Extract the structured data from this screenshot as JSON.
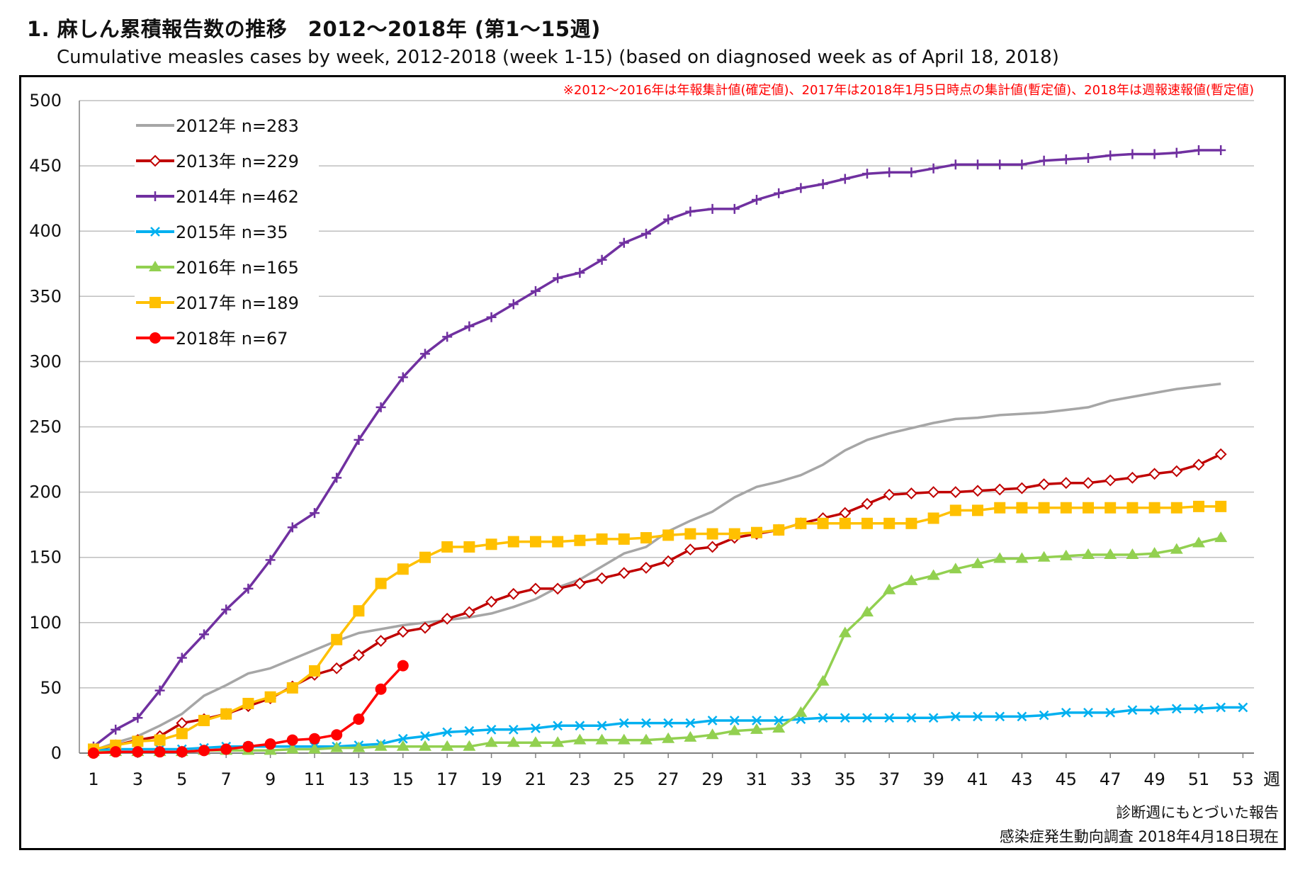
{
  "header": {
    "title": "1. 麻しん累積報告数の推移　2012～2018年 (第1～15週)",
    "subtitle": "Cumulative measles cases by week, 2012-2018 (week 1-15)  (based on diagnosed week as of April 18, 2018)"
  },
  "chart_data": {
    "type": "line",
    "title": "1. 麻しん累積報告数の推移　2012～2018年 (第1～15週)",
    "subtitle": "Cumulative measles cases by week, 2012-2018 (week 1-15)  (based on diagnosed week as of April 18, 2018)",
    "note_top": "※2012～2016年は年報集計値(確定値)、2017年は2018年1月5日時点の集計値(暫定値)、2018年は週報速報値(暫定値)",
    "note_bottom_1": "診断週にもとづいた報告",
    "note_bottom_2": "感染症発生動向調査 2018年4月18日現在",
    "xlabel": "週",
    "ylim": [
      0,
      500
    ],
    "yticks": [
      0,
      50,
      100,
      150,
      200,
      250,
      300,
      350,
      400,
      450,
      500
    ],
    "xlim": [
      1,
      53
    ],
    "xticks": [
      "1",
      "3",
      "5",
      "7",
      "9",
      "11",
      "13",
      "15",
      "17",
      "19",
      "21",
      "23",
      "25",
      "27",
      "29",
      "31",
      "33",
      "35",
      "37",
      "39",
      "41",
      "43",
      "45",
      "47",
      "49",
      "51",
      "53"
    ],
    "grid": true,
    "legend_position": "top-left",
    "series": [
      {
        "name": "2012年 n=283",
        "color": "#a6a6a6",
        "marker": "none",
        "values": [
          2,
          8,
          13,
          21,
          30,
          44,
          52,
          61,
          65,
          72,
          79,
          86,
          92,
          95,
          98,
          100,
          102,
          104,
          107,
          112,
          118,
          127,
          133,
          143,
          153,
          158,
          170,
          178,
          185,
          196,
          204,
          208,
          213,
          221,
          232,
          240,
          245,
          249,
          253,
          256,
          257,
          259,
          260,
          261,
          263,
          265,
          270,
          273,
          276,
          279,
          281,
          283
        ]
      },
      {
        "name": "2013年 n=229",
        "color": "#c00000",
        "marker": "diamond",
        "values": [
          2,
          6,
          10,
          13,
          23,
          26,
          30,
          36,
          42,
          51,
          60,
          65,
          75,
          86,
          93,
          96,
          103,
          108,
          116,
          122,
          126,
          126,
          130,
          134,
          138,
          142,
          147,
          156,
          158,
          165,
          168,
          171,
          176,
          180,
          184,
          191,
          198,
          199,
          200,
          200,
          201,
          202,
          203,
          206,
          207,
          207,
          209,
          211,
          214,
          216,
          221,
          229
        ]
      },
      {
        "name": "2014年 n=462",
        "color": "#7030a0",
        "marker": "plus",
        "values": [
          5,
          18,
          27,
          48,
          73,
          91,
          110,
          126,
          148,
          173,
          184,
          211,
          240,
          265,
          288,
          306,
          319,
          327,
          334,
          344,
          354,
          364,
          368,
          378,
          391,
          398,
          409,
          415,
          417,
          417,
          424,
          429,
          433,
          436,
          440,
          444,
          445,
          445,
          448,
          451,
          451,
          451,
          451,
          454,
          455,
          456,
          458,
          459,
          459,
          460,
          462,
          462
        ]
      },
      {
        "name": "2015年 n=35",
        "color": "#00b0f0",
        "marker": "x",
        "values": [
          2,
          3,
          3,
          3,
          3,
          4,
          5,
          5,
          5,
          5,
          5,
          5,
          6,
          7,
          11,
          13,
          16,
          17,
          18,
          18,
          19,
          21,
          21,
          21,
          23,
          23,
          23,
          23,
          25,
          25,
          25,
          25,
          26,
          27,
          27,
          27,
          27,
          27,
          27,
          28,
          28,
          28,
          28,
          29,
          31,
          31,
          31,
          33,
          33,
          34,
          34,
          35,
          35
        ]
      },
      {
        "name": "2016年 n=165",
        "color": "#92d050",
        "marker": "triangle",
        "values": [
          1,
          1,
          1,
          1,
          1,
          2,
          2,
          2,
          2,
          3,
          3,
          4,
          4,
          5,
          5,
          5,
          5,
          5,
          8,
          8,
          8,
          8,
          10,
          10,
          10,
          10,
          11,
          12,
          14,
          17,
          18,
          19,
          31,
          55,
          92,
          108,
          125,
          132,
          136,
          141,
          145,
          149,
          149,
          150,
          151,
          152,
          152,
          152,
          153,
          156,
          161,
          165
        ]
      },
      {
        "name": "2017年 n=189",
        "color": "#ffc000",
        "marker": "square",
        "values": [
          3,
          6,
          9,
          10,
          15,
          25,
          30,
          38,
          43,
          50,
          63,
          87,
          109,
          130,
          141,
          150,
          158,
          158,
          160,
          162,
          162,
          162,
          163,
          164,
          164,
          165,
          167,
          168,
          168,
          168,
          169,
          171,
          176,
          176,
          176,
          176,
          176,
          176,
          180,
          186,
          186,
          188,
          188,
          188,
          188,
          188,
          188,
          188,
          188,
          188,
          189,
          189
        ]
      },
      {
        "name": "2018年 n=67",
        "color": "#ff0000",
        "marker": "circle",
        "values": [
          0,
          1,
          1,
          1,
          1,
          2,
          3,
          5,
          7,
          10,
          11,
          14,
          26,
          49,
          67
        ]
      }
    ]
  }
}
